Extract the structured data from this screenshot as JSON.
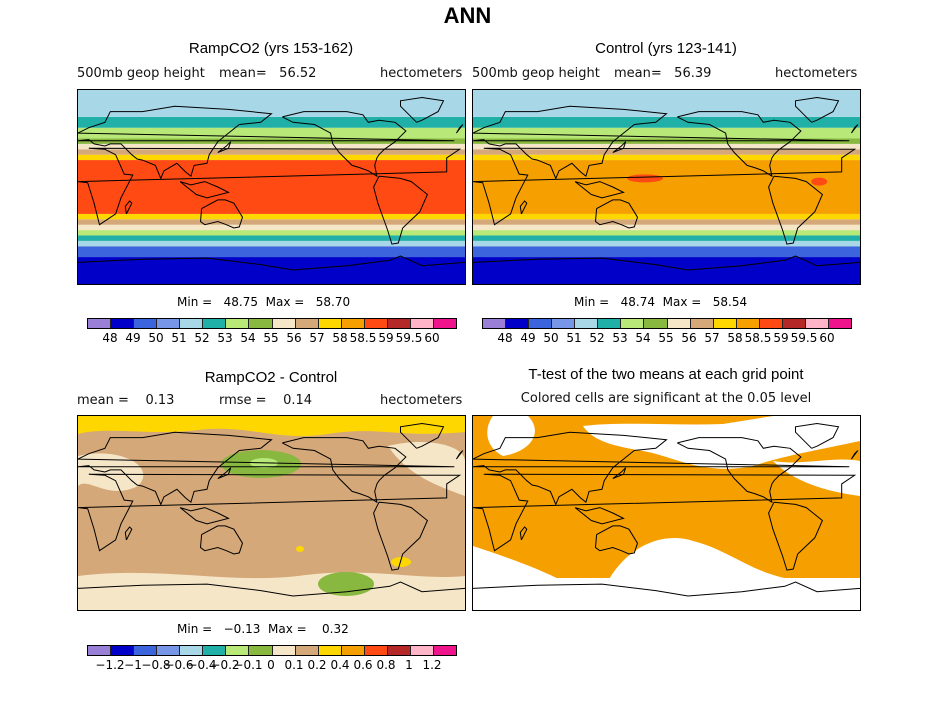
{
  "figure_title": "ANN",
  "panels": {
    "ramp": {
      "title": "RampCO2 (yrs 153-162)",
      "var_label": "500mb geop height",
      "mean_label": "mean=",
      "mean_value": "56.52",
      "units": "hectometers",
      "min_label": "Min =",
      "min_value": "48.75",
      "max_label": "Max =",
      "max_value": "58.70"
    },
    "control": {
      "title": "Control (yrs 123-141)",
      "var_label": "500mb geop height",
      "mean_label": "mean=",
      "mean_value": "56.39",
      "units": "hectometers",
      "min_label": "Min =",
      "min_value": "48.74",
      "max_label": "Max =",
      "max_value": "58.54"
    },
    "diff": {
      "title": "RampCO2 - Control",
      "mean_label": "mean =",
      "mean_value": "0.13",
      "rmse_label": "rmse =",
      "rmse_value": "0.14",
      "units": "hectometers",
      "min_label": "Min =",
      "min_value": "−0.13",
      "max_label": "Max =",
      "max_value": "0.32"
    },
    "ttest": {
      "title": "T-test of the two means at each grid point",
      "subtitle": "Colored cells are significant at the 0.05 level"
    }
  },
  "chart_data": [
    {
      "type": "heatmap",
      "name": "ramp-map",
      "title": "RampCO2 (yrs 153-162)",
      "variable": "500mb geop height",
      "units": "hectometers",
      "mean": 56.52,
      "min": 48.75,
      "max": 58.7,
      "levels": [
        "48",
        "49",
        "50",
        "51",
        "52",
        "53",
        "54",
        "55",
        "56",
        "57",
        "58",
        "58.5",
        "59",
        "59.5",
        "60"
      ],
      "colors": [
        "#9a7fd6",
        "#0000c8",
        "#3c64dc",
        "#7896e8",
        "#a8d8e8",
        "#20b0a8",
        "#b8e878",
        "#88b840",
        "#f5e6c8",
        "#d4a878",
        "#ffd700",
        "#f5a000",
        "#ff4a14",
        "#b42828",
        "#ffb4c8",
        "#f0148c"
      ],
      "zonal_bands_south_to_north": [
        {
          "lat": [
            -90,
            -65
          ],
          "level_index": 1
        },
        {
          "lat": [
            -65,
            -55
          ],
          "level_index": 2
        },
        {
          "lat": [
            -55,
            -50
          ],
          "level_index": 4
        },
        {
          "lat": [
            -50,
            -45
          ],
          "level_index": 5
        },
        {
          "lat": [
            -45,
            -40
          ],
          "level_index": 6
        },
        {
          "lat": [
            -40,
            -35
          ],
          "level_index": 8
        },
        {
          "lat": [
            -35,
            -30
          ],
          "level_index": 9
        },
        {
          "lat": [
            -30,
            -25
          ],
          "level_index": 10
        },
        {
          "lat": [
            -25,
            25
          ],
          "level_index": 12
        },
        {
          "lat": [
            25,
            30
          ],
          "level_index": 10
        },
        {
          "lat": [
            30,
            35
          ],
          "level_index": 9
        },
        {
          "lat": [
            35,
            40
          ],
          "level_index": 8
        },
        {
          "lat": [
            40,
            45
          ],
          "level_index": 7
        },
        {
          "lat": [
            45,
            55
          ],
          "level_index": 6
        },
        {
          "lat": [
            55,
            65
          ],
          "level_index": 5
        },
        {
          "lat": [
            65,
            90
          ],
          "level_index": 4
        }
      ]
    },
    {
      "type": "heatmap",
      "name": "control-map",
      "title": "Control (yrs 123-141)",
      "variable": "500mb geop height",
      "units": "hectometers",
      "mean": 56.39,
      "min": 48.74,
      "max": 58.54,
      "levels": [
        "48",
        "49",
        "50",
        "51",
        "52",
        "53",
        "54",
        "55",
        "56",
        "57",
        "58",
        "58.5",
        "59",
        "59.5",
        "60"
      ],
      "colors": [
        "#9a7fd6",
        "#0000c8",
        "#3c64dc",
        "#7896e8",
        "#a8d8e8",
        "#20b0a8",
        "#b8e878",
        "#88b840",
        "#f5e6c8",
        "#d4a878",
        "#ffd700",
        "#f5a000",
        "#ff4a14",
        "#b42828",
        "#ffb4c8",
        "#f0148c"
      ],
      "zonal_bands_south_to_north": [
        {
          "lat": [
            -90,
            -65
          ],
          "level_index": 1
        },
        {
          "lat": [
            -65,
            -55
          ],
          "level_index": 2
        },
        {
          "lat": [
            -55,
            -50
          ],
          "level_index": 4
        },
        {
          "lat": [
            -50,
            -45
          ],
          "level_index": 5
        },
        {
          "lat": [
            -45,
            -40
          ],
          "level_index": 6
        },
        {
          "lat": [
            -40,
            -35
          ],
          "level_index": 8
        },
        {
          "lat": [
            -35,
            -30
          ],
          "level_index": 9
        },
        {
          "lat": [
            -30,
            -25
          ],
          "level_index": 10
        },
        {
          "lat": [
            -25,
            25
          ],
          "level_index": 11
        },
        {
          "lat": [
            25,
            30
          ],
          "level_index": 10
        },
        {
          "lat": [
            30,
            35
          ],
          "level_index": 9
        },
        {
          "lat": [
            35,
            40
          ],
          "level_index": 8
        },
        {
          "lat": [
            40,
            45
          ],
          "level_index": 7
        },
        {
          "lat": [
            45,
            55
          ],
          "level_index": 6
        },
        {
          "lat": [
            55,
            65
          ],
          "level_index": 5
        },
        {
          "lat": [
            65,
            90
          ],
          "level_index": 4
        }
      ]
    },
    {
      "type": "heatmap",
      "name": "diff-map",
      "title": "RampCO2 - Control",
      "units": "hectometers",
      "mean": 0.13,
      "rmse": 0.14,
      "min": -0.13,
      "max": 0.32,
      "levels": [
        "−1.2",
        "−1",
        "−0.8",
        "−0.6",
        "−0.4",
        "−0.2",
        "−0.1",
        "0",
        "0.1",
        "0.2",
        "0.4",
        "0.6",
        "0.8",
        "1",
        "1.2"
      ],
      "colors": [
        "#9a7fd6",
        "#0000c8",
        "#3c64dc",
        "#7896e8",
        "#a8d8e8",
        "#20b0a8",
        "#b8e878",
        "#88b840",
        "#f5e6c8",
        "#d4a878",
        "#ffd700",
        "#f5a000",
        "#ff4a14",
        "#b42828",
        "#ffb4c8",
        "#f0148c"
      ],
      "background_level_index": 9,
      "features": [
        {
          "region": "north polar cap",
          "level_index": 10
        },
        {
          "region": "high southern latitudes",
          "level_index": 8
        },
        {
          "region": "north pacific",
          "level_index": 7
        },
        {
          "region": "southern atlantic",
          "level_index": 7
        }
      ]
    },
    {
      "type": "heatmap",
      "name": "ttest-map",
      "title": "T-test of the two means at each grid point",
      "subtitle": "Colored cells are significant at the 0.05 level",
      "significant_color": "#f5a000",
      "not_significant_color": "#ffffff"
    }
  ]
}
